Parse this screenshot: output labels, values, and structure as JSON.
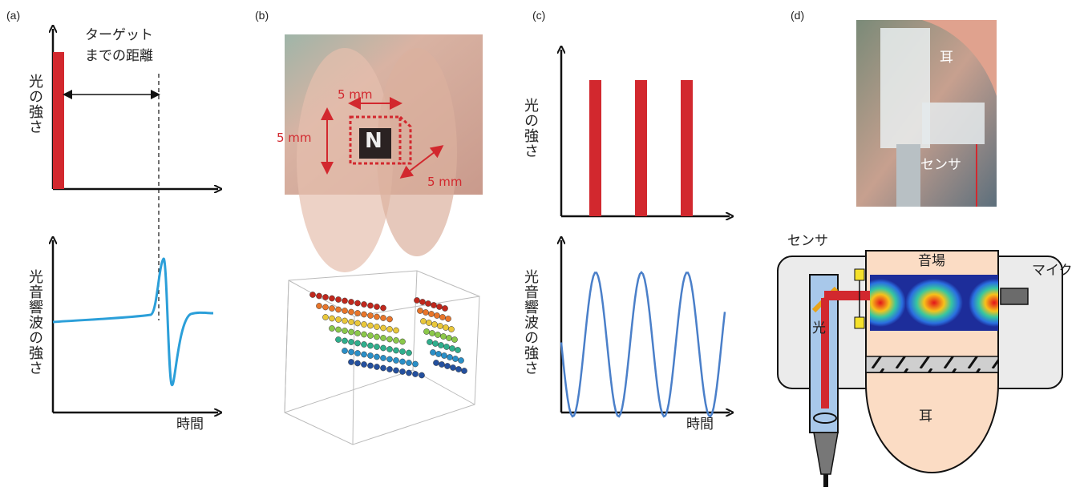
{
  "panels": [
    {
      "label": "(a)",
      "target_distance": [
        "ターゲット",
        "までの距離"
      ],
      "light_intensity": "光の強さ",
      "photoacoustic_intensity": "光音響波の強さ",
      "time": "時間"
    },
    {
      "label": "(b)",
      "target_letter": "N",
      "dimensions": [
        "5 mm",
        "5 mm",
        "5 mm"
      ]
    },
    {
      "label": "(c)",
      "light_intensity": "光の強さ",
      "photoacoustic_intensity": "光音響波の強さ",
      "time": "時間"
    },
    {
      "label": "(d)",
      "photo_labels": [
        "耳",
        "センサ"
      ],
      "diagram_labels": {
        "sensor": "センサ",
        "sound_field": "音場",
        "microphone": "マイク",
        "light": "光",
        "ear": "耳"
      }
    }
  ]
}
